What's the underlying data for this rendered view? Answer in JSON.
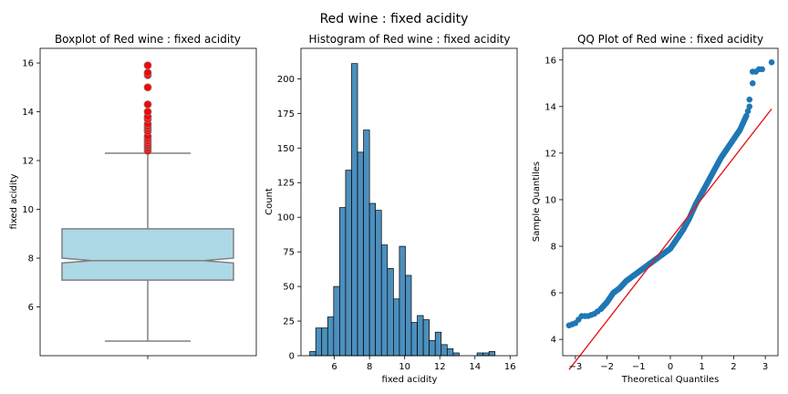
{
  "figure": {
    "suptitle": "Red wine : fixed acidity"
  },
  "colors": {
    "box_fill": "#add8e6",
    "box_edge": "#808080",
    "outlier": "#ff0000",
    "hist_fill": "#4c8fbd",
    "qq_point": "#1f77b4",
    "qq_line": "#e41a1c"
  },
  "chart_data": [
    {
      "type": "box",
      "title": "Boxplot of Red wine : fixed acidity",
      "ylabel": "fixed acidity",
      "ylim": [
        4.0,
        16.6
      ],
      "yticks": [
        6,
        8,
        10,
        12,
        14,
        16
      ],
      "stats": {
        "whisker_low": 4.6,
        "q1": 7.1,
        "median": 7.9,
        "q3": 9.2,
        "whisker_high": 12.3,
        "notch_low": 7.8,
        "notch_high": 8.0
      },
      "outliers": [
        12.4,
        12.5,
        12.6,
        12.7,
        12.8,
        12.9,
        13.0,
        13.2,
        13.3,
        13.4,
        13.5,
        13.7,
        13.8,
        14.0,
        14.3,
        15.0,
        15.5,
        15.6,
        15.9
      ]
    },
    {
      "type": "histogram",
      "title": "Histogram of Red wine : fixed acidity",
      "xlabel": "fixed acidity",
      "ylabel": "Count",
      "xlim": [
        4.1,
        16.4
      ],
      "ylim": [
        0,
        222
      ],
      "xticks": [
        6,
        8,
        10,
        12,
        14,
        16
      ],
      "yticks": [
        0,
        25,
        50,
        75,
        100,
        125,
        150,
        175,
        200
      ],
      "bin_start": 4.6,
      "bin_width": 0.34,
      "counts": [
        3,
        20,
        20,
        28,
        50,
        107,
        134,
        211,
        147,
        163,
        110,
        105,
        80,
        63,
        41,
        79,
        58,
        24,
        29,
        26,
        11,
        17,
        8,
        5,
        2,
        0,
        0,
        0,
        2,
        2,
        3
      ]
    },
    {
      "type": "scatter",
      "title": "QQ Plot of Red wine : fixed acidity",
      "xlabel": "Theoretical Quantiles",
      "ylabel": "Sample Quantiles",
      "xlim": [
        -3.4,
        3.4
      ],
      "ylim": [
        3.3,
        16.5
      ],
      "xticks": [
        -3,
        -2,
        -1,
        0,
        1,
        2,
        3
      ],
      "yticks": [
        4,
        6,
        8,
        10,
        12,
        14,
        16
      ],
      "reference_line": {
        "x": [
          -3.2,
          3.2
        ],
        "y": [
          2.7,
          13.9
        ]
      },
      "quantile_curve": {
        "x": [
          -3.2,
          -3.0,
          -2.8,
          -2.6,
          -2.4,
          -2.2,
          -2.0,
          -1.8,
          -1.6,
          -1.4,
          -1.2,
          -1.0,
          -0.8,
          -0.6,
          -0.4,
          -0.2,
          0.0,
          0.2,
          0.4,
          0.6,
          0.8,
          1.0,
          1.2,
          1.4,
          1.6,
          1.8,
          2.0,
          2.2,
          2.4,
          2.5
        ],
        "y": [
          4.6,
          4.7,
          5.0,
          5.0,
          5.1,
          5.3,
          5.6,
          6.0,
          6.2,
          6.5,
          6.7,
          6.9,
          7.1,
          7.3,
          7.5,
          7.7,
          7.9,
          8.3,
          8.7,
          9.2,
          9.8,
          10.3,
          10.8,
          11.3,
          11.8,
          12.2,
          12.6,
          13.0,
          13.6,
          14.0
        ]
      },
      "extra_points": {
        "x": [
          2.5,
          2.6,
          2.6,
          2.7,
          2.8,
          2.9,
          3.2
        ],
        "y": [
          14.3,
          15.0,
          15.5,
          15.5,
          15.6,
          15.6,
          15.9
        ]
      }
    }
  ]
}
